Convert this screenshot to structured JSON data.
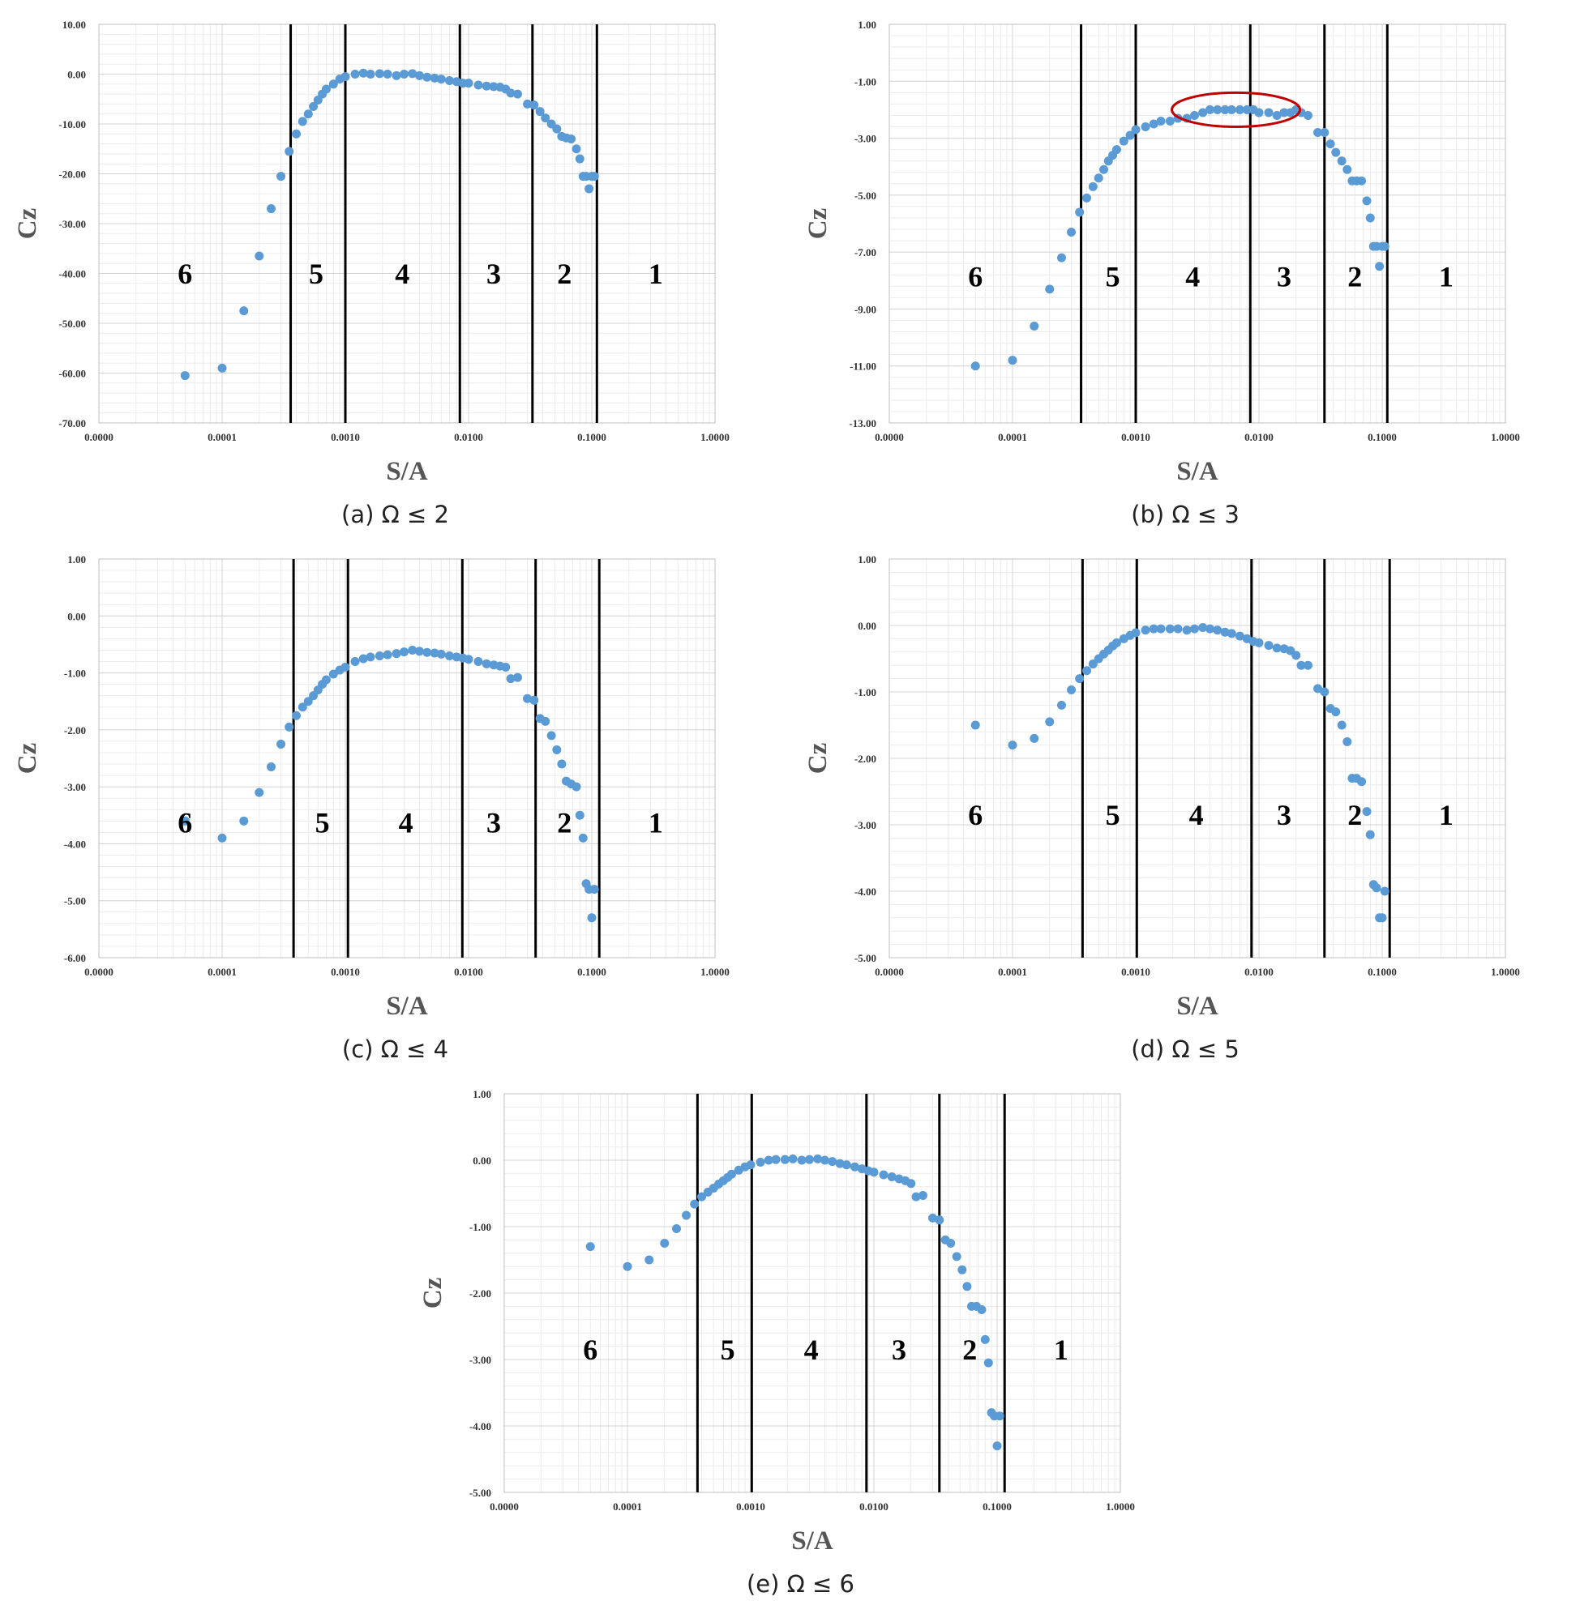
{
  "chart_data": [
    {
      "type": "scatter",
      "caption": "(a) Ω ≤ 2",
      "xlabel": "S/A",
      "ylabel": "Cz",
      "x_scale": "log",
      "xlim": [
        1e-05,
        1
      ],
      "ylim": [
        -70,
        10
      ],
      "x_tick_labels": [
        "0.0000",
        "0.0001",
        "0.0010",
        "0.0100",
        "0.1000",
        "1.0000"
      ],
      "y_ticks": [
        10,
        0,
        -10,
        -20,
        -30,
        -40,
        -50,
        -60,
        -70
      ],
      "y_tick_labels": [
        "10.00",
        "0.00",
        "-10.00",
        "-20.00",
        "-30.00",
        "-40.00",
        "-50.00",
        "-60.00",
        "-70.00"
      ],
      "grid": true,
      "marker_color": "#5b9bd5",
      "vlines": [
        0.00036,
        0.001,
        0.0085,
        0.033,
        0.11
      ],
      "regions": [
        {
          "label": "6",
          "x": 5e-05
        },
        {
          "label": "5",
          "x": 0.00058
        },
        {
          "label": "4",
          "x": 0.0029
        },
        {
          "label": "3",
          "x": 0.016
        },
        {
          "label": "2",
          "x": 0.06
        },
        {
          "label": "1",
          "x": 0.33
        }
      ],
      "region_label_y": -42,
      "series": [
        {
          "x": [
            5e-05,
            0.0001,
            0.00015,
            0.0002,
            0.00025,
            0.0003,
            0.00035,
            0.0004,
            0.00045,
            0.0005,
            0.00055,
            0.0006,
            0.00065,
            0.0007,
            0.0008,
            0.0009,
            0.001,
            0.0012,
            0.0014,
            0.0016,
            0.0019,
            0.0022,
            0.0026,
            0.003,
            0.0035,
            0.004,
            0.0046,
            0.0053,
            0.006,
            0.007,
            0.008,
            0.009,
            0.01,
            0.012,
            0.014,
            0.016,
            0.018,
            0.02,
            0.022,
            0.025,
            0.03,
            0.034,
            0.038,
            0.042,
            0.047,
            0.052,
            0.057,
            0.062,
            0.068,
            0.075,
            0.08,
            0.085,
            0.09,
            0.095,
            0.1,
            0.105
          ],
          "y": [
            -60.5,
            -59,
            -47.5,
            -36.5,
            -27,
            -20.5,
            -15.5,
            -12,
            -9.5,
            -8,
            -6.5,
            -5.2,
            -4,
            -3,
            -2,
            -1,
            -0.5,
            0,
            0.2,
            0,
            0.1,
            0,
            -0.3,
            0,
            0.1,
            -0.3,
            -0.6,
            -0.8,
            -1,
            -1.3,
            -1.5,
            -1.8,
            -1.8,
            -2.2,
            -2.4,
            -2.5,
            -2.6,
            -3,
            -3.8,
            -4,
            -6,
            -6.2,
            -7.5,
            -8.8,
            -10,
            -11,
            -12.5,
            -12.8,
            -13,
            -15,
            -17,
            -20.5,
            -20.5,
            -23,
            -20.5,
            -20.5
          ]
        }
      ]
    },
    {
      "type": "scatter",
      "caption": "(b) Ω ≤ 3",
      "xlabel": "S/A",
      "ylabel": "Cz",
      "x_scale": "log",
      "xlim": [
        1e-05,
        1
      ],
      "ylim": [
        -13,
        1
      ],
      "x_tick_labels": [
        "0.0000",
        "0.0001",
        "0.0010",
        "0.0100",
        "0.1000",
        "1.0000"
      ],
      "y_ticks": [
        1,
        -1,
        -3,
        -5,
        -7,
        -9,
        -11,
        -13
      ],
      "y_tick_labels": [
        "1.00",
        "-1.00",
        "-3.00",
        "-5.00",
        "-7.00",
        "-9.00",
        "-11.00",
        "-13.00"
      ],
      "grid": true,
      "marker_color": "#5b9bd5",
      "vlines": [
        0.00036,
        0.001,
        0.0085,
        0.034,
        0.11
      ],
      "regions": [
        {
          "label": "6",
          "x": 5e-05
        },
        {
          "label": "5",
          "x": 0.00065
        },
        {
          "label": "4",
          "x": 0.0029
        },
        {
          "label": "3",
          "x": 0.016
        },
        {
          "label": "2",
          "x": 0.06
        },
        {
          "label": "1",
          "x": 0.33
        }
      ],
      "region_label_y": -8.2,
      "ellipse": {
        "cx": 0.0065,
        "cy": -2.0,
        "rx_decades": 0.52,
        "ry": 0.6,
        "color": "#c00000"
      },
      "series": [
        {
          "x": [
            5e-05,
            0.0001,
            0.00015,
            0.0002,
            0.00025,
            0.0003,
            0.00035,
            0.0004,
            0.00045,
            0.0005,
            0.00055,
            0.0006,
            0.00065,
            0.0007,
            0.0008,
            0.0009,
            0.001,
            0.0012,
            0.0014,
            0.0016,
            0.0019,
            0.0022,
            0.0026,
            0.003,
            0.0035,
            0.004,
            0.0046,
            0.0053,
            0.006,
            0.007,
            0.008,
            0.009,
            0.01,
            0.012,
            0.014,
            0.016,
            0.018,
            0.02,
            0.022,
            0.025,
            0.03,
            0.034,
            0.038,
            0.042,
            0.047,
            0.052,
            0.057,
            0.062,
            0.068,
            0.075,
            0.08,
            0.085,
            0.09,
            0.095,
            0.1,
            0.105
          ],
          "y": [
            -11,
            -10.8,
            -9.6,
            -8.3,
            -7.2,
            -6.3,
            -5.6,
            -5.1,
            -4.7,
            -4.4,
            -4.1,
            -3.8,
            -3.6,
            -3.4,
            -3.1,
            -2.9,
            -2.7,
            -2.6,
            -2.5,
            -2.4,
            -2.4,
            -2.3,
            -2.3,
            -2.2,
            -2.1,
            -2.0,
            -2.0,
            -2.0,
            -2.0,
            -2.0,
            -2.0,
            -2.0,
            -2.1,
            -2.1,
            -2.2,
            -2.1,
            -2.1,
            -2.0,
            -2.1,
            -2.2,
            -2.8,
            -2.8,
            -3.2,
            -3.5,
            -3.8,
            -4.1,
            -4.5,
            -4.5,
            -4.5,
            -5.2,
            -5.8,
            -6.8,
            -6.8,
            -7.5,
            -6.8,
            -6.8
          ]
        }
      ]
    },
    {
      "type": "scatter",
      "caption": "(c) Ω ≤ 4",
      "xlabel": "S/A",
      "ylabel": "Cz",
      "x_scale": "log",
      "xlim": [
        1e-05,
        1
      ],
      "ylim": [
        -6,
        1
      ],
      "x_tick_labels": [
        "0.0000",
        "0.0001",
        "0.0010",
        "0.0100",
        "0.1000",
        "1.0000"
      ],
      "y_ticks": [
        1,
        0,
        -1,
        -2,
        -3,
        -4,
        -5,
        -6
      ],
      "y_tick_labels": [
        "1.00",
        "0.00",
        "-1.00",
        "-2.00",
        "-3.00",
        "-4.00",
        "-5.00",
        "-6.00"
      ],
      "grid": true,
      "marker_color": "#5b9bd5",
      "vlines": [
        0.00038,
        0.00105,
        0.0089,
        0.035,
        0.115
      ],
      "regions": [
        {
          "label": "6",
          "x": 5e-05
        },
        {
          "label": "5",
          "x": 0.00065
        },
        {
          "label": "4",
          "x": 0.0031
        },
        {
          "label": "3",
          "x": 0.016
        },
        {
          "label": "2",
          "x": 0.06
        },
        {
          "label": "1",
          "x": 0.33
        }
      ],
      "region_label_y": -3.8,
      "series": [
        {
          "x": [
            5e-05,
            0.0001,
            0.00015,
            0.0002,
            0.00025,
            0.0003,
            0.00035,
            0.0004,
            0.00045,
            0.0005,
            0.00055,
            0.0006,
            0.00065,
            0.0007,
            0.0008,
            0.0009,
            0.001,
            0.0012,
            0.0014,
            0.0016,
            0.0019,
            0.0022,
            0.0026,
            0.003,
            0.0035,
            0.004,
            0.0046,
            0.0053,
            0.006,
            0.007,
            0.008,
            0.009,
            0.01,
            0.012,
            0.014,
            0.016,
            0.018,
            0.02,
            0.022,
            0.025,
            0.03,
            0.034,
            0.038,
            0.042,
            0.047,
            0.052,
            0.057,
            0.062,
            0.068,
            0.075,
            0.08,
            0.085,
            0.09,
            0.095,
            0.1,
            0.105
          ],
          "y": [
            -3.6,
            -3.9,
            -3.6,
            -3.1,
            -2.65,
            -2.25,
            -1.95,
            -1.75,
            -1.6,
            -1.5,
            -1.4,
            -1.3,
            -1.2,
            -1.12,
            -1.02,
            -0.95,
            -0.9,
            -0.8,
            -0.75,
            -0.72,
            -0.7,
            -0.68,
            -0.66,
            -0.63,
            -0.6,
            -0.62,
            -0.64,
            -0.65,
            -0.67,
            -0.7,
            -0.72,
            -0.74,
            -0.76,
            -0.8,
            -0.84,
            -0.86,
            -0.88,
            -0.9,
            -1.1,
            -1.08,
            -1.45,
            -1.48,
            -1.8,
            -1.85,
            -2.1,
            -2.35,
            -2.6,
            -2.9,
            -2.95,
            -3.0,
            -3.5,
            -3.9,
            -4.7,
            -4.8,
            -5.3,
            -4.8
          ]
        }
      ]
    },
    {
      "type": "scatter",
      "caption": "(d) Ω ≤ 5",
      "xlabel": "S/A",
      "ylabel": "Cz",
      "x_scale": "log",
      "xlim": [
        1e-05,
        1
      ],
      "ylim": [
        -5,
        1
      ],
      "x_tick_labels": [
        "0.0000",
        "0.0001",
        "0.0010",
        "0.0100",
        "0.1000",
        "1.0000"
      ],
      "y_ticks": [
        1,
        0,
        -1,
        -2,
        -3,
        -4,
        -5
      ],
      "y_tick_labels": [
        "1.00",
        "0.00",
        "-1.00",
        "-2.00",
        "-3.00",
        "-4.00",
        "-5.00"
      ],
      "grid": true,
      "marker_color": "#5b9bd5",
      "vlines": [
        0.00037,
        0.00102,
        0.0087,
        0.034,
        0.115
      ],
      "regions": [
        {
          "label": "6",
          "x": 5e-05
        },
        {
          "label": "5",
          "x": 0.00065
        },
        {
          "label": "4",
          "x": 0.0031
        },
        {
          "label": "3",
          "x": 0.016
        },
        {
          "label": "2",
          "x": 0.06
        },
        {
          "label": "1",
          "x": 0.33
        }
      ],
      "region_label_y": -3.0,
      "series": [
        {
          "x": [
            5e-05,
            0.0001,
            0.00015,
            0.0002,
            0.00025,
            0.0003,
            0.00035,
            0.0004,
            0.00045,
            0.0005,
            0.00055,
            0.0006,
            0.00065,
            0.0007,
            0.0008,
            0.0009,
            0.001,
            0.0012,
            0.0014,
            0.0016,
            0.0019,
            0.0022,
            0.0026,
            0.003,
            0.0035,
            0.004,
            0.0046,
            0.0053,
            0.006,
            0.007,
            0.008,
            0.009,
            0.01,
            0.012,
            0.014,
            0.016,
            0.018,
            0.02,
            0.022,
            0.025,
            0.03,
            0.034,
            0.038,
            0.042,
            0.047,
            0.052,
            0.057,
            0.062,
            0.068,
            0.075,
            0.08,
            0.085,
            0.09,
            0.095,
            0.1,
            0.105
          ],
          "y": [
            -1.5,
            -1.8,
            -1.7,
            -1.45,
            -1.2,
            -0.97,
            -0.8,
            -0.68,
            -0.58,
            -0.5,
            -0.43,
            -0.37,
            -0.31,
            -0.26,
            -0.2,
            -0.15,
            -0.11,
            -0.07,
            -0.05,
            -0.05,
            -0.05,
            -0.05,
            -0.07,
            -0.05,
            -0.03,
            -0.05,
            -0.07,
            -0.1,
            -0.12,
            -0.16,
            -0.2,
            -0.24,
            -0.26,
            -0.3,
            -0.34,
            -0.35,
            -0.38,
            -0.45,
            -0.6,
            -0.6,
            -0.95,
            -1.0,
            -1.25,
            -1.3,
            -1.5,
            -1.75,
            -2.3,
            -2.3,
            -2.35,
            -2.8,
            -3.15,
            -3.9,
            -3.95,
            -4.4,
            -4.4,
            -4.0
          ]
        }
      ]
    },
    {
      "type": "scatter",
      "caption": "(e) Ω ≤ 6",
      "xlabel": "S/A",
      "ylabel": "Cz",
      "x_scale": "log",
      "xlim": [
        1e-05,
        1
      ],
      "ylim": [
        -5,
        1
      ],
      "x_tick_labels": [
        "0.0000",
        "0.0001",
        "0.0010",
        "0.0100",
        "0.1000",
        "1.0000"
      ],
      "y_ticks": [
        1,
        0,
        -1,
        -2,
        -3,
        -4,
        -5
      ],
      "y_tick_labels": [
        "1.00",
        "0.00",
        "-1.00",
        "-2.00",
        "-3.00",
        "-4.00",
        "-5.00"
      ],
      "grid": true,
      "marker_color": "#5b9bd5",
      "vlines": [
        0.00037,
        0.00102,
        0.0087,
        0.034,
        0.115
      ],
      "regions": [
        {
          "label": "6",
          "x": 5e-05
        },
        {
          "label": "5",
          "x": 0.00065
        },
        {
          "label": "4",
          "x": 0.0031
        },
        {
          "label": "3",
          "x": 0.016
        },
        {
          "label": "2",
          "x": 0.06
        },
        {
          "label": "1",
          "x": 0.33
        }
      ],
      "region_label_y": -3.0,
      "series": [
        {
          "x": [
            5e-05,
            0.0001,
            0.00015,
            0.0002,
            0.00025,
            0.0003,
            0.00035,
            0.0004,
            0.00045,
            0.0005,
            0.00055,
            0.0006,
            0.00065,
            0.0007,
            0.0008,
            0.0009,
            0.001,
            0.0012,
            0.0014,
            0.0016,
            0.0019,
            0.0022,
            0.0026,
            0.003,
            0.0035,
            0.004,
            0.0046,
            0.0053,
            0.006,
            0.007,
            0.008,
            0.009,
            0.01,
            0.012,
            0.014,
            0.016,
            0.018,
            0.02,
            0.022,
            0.025,
            0.03,
            0.034,
            0.038,
            0.042,
            0.047,
            0.052,
            0.057,
            0.062,
            0.068,
            0.075,
            0.08,
            0.085,
            0.09,
            0.095,
            0.1,
            0.105
          ],
          "y": [
            -1.3,
            -1.6,
            -1.5,
            -1.25,
            -1.03,
            -0.83,
            -0.66,
            -0.55,
            -0.48,
            -0.42,
            -0.36,
            -0.31,
            -0.26,
            -0.21,
            -0.15,
            -0.1,
            -0.07,
            -0.03,
            0,
            0.01,
            0.01,
            0.02,
            0,
            0.01,
            0.02,
            0,
            -0.02,
            -0.05,
            -0.07,
            -0.1,
            -0.13,
            -0.16,
            -0.18,
            -0.22,
            -0.25,
            -0.28,
            -0.31,
            -0.35,
            -0.55,
            -0.53,
            -0.87,
            -0.9,
            -1.2,
            -1.25,
            -1.45,
            -1.65,
            -1.9,
            -2.2,
            -2.2,
            -2.25,
            -2.7,
            -3.05,
            -3.8,
            -3.85,
            -4.3,
            -3.85
          ]
        }
      ]
    }
  ]
}
